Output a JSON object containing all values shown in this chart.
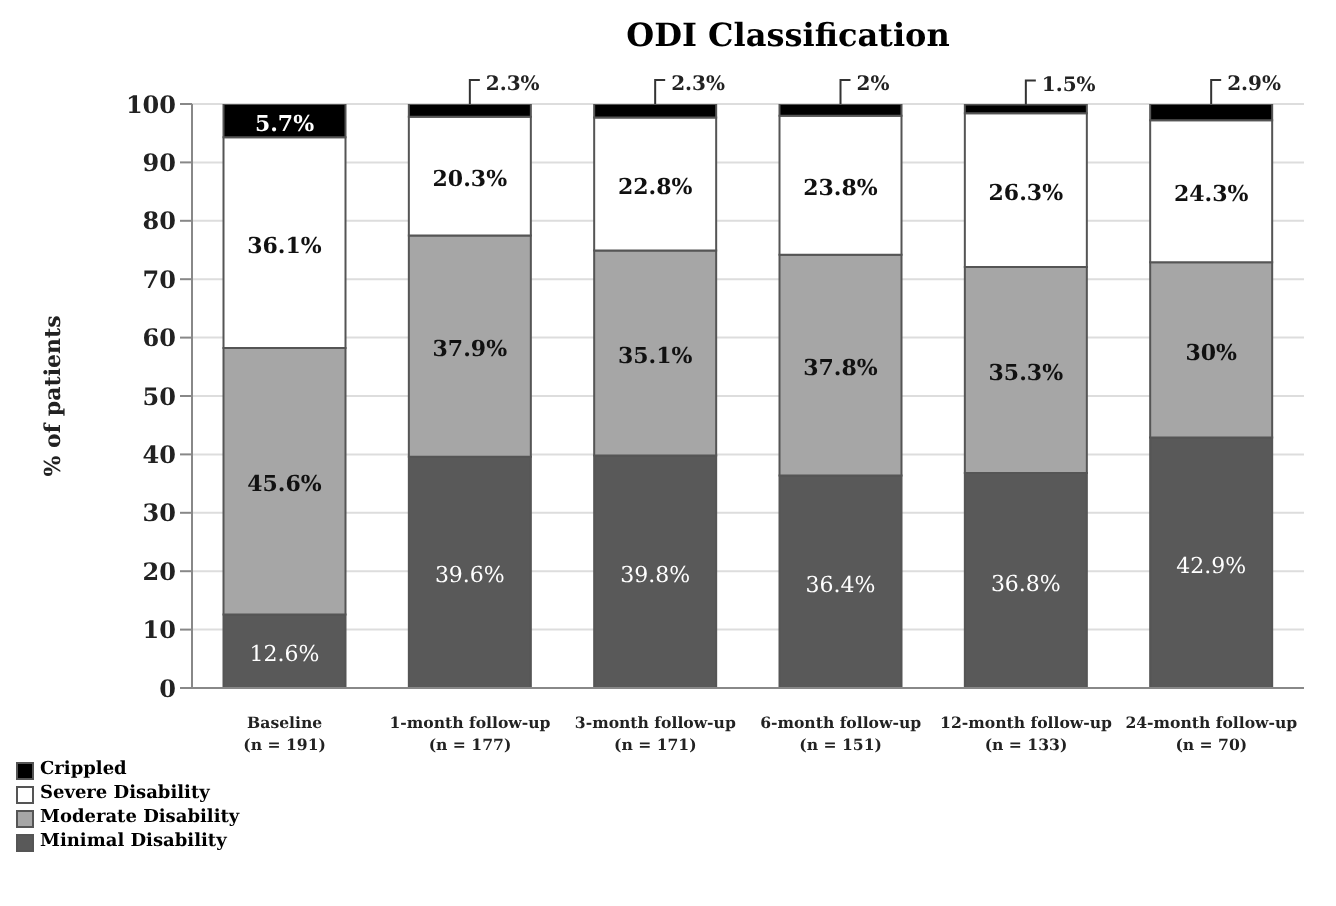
{
  "chart_data": {
    "type": "bar",
    "title": "ODI Classification",
    "ylabel": "% of patients",
    "stacked": true,
    "grid": "y",
    "legend": "bottom left",
    "categories": [
      "Baseline\n(n = 191)",
      "1-month follow-up\n(n = 177)",
      "3-month follow-up\n(n = 171)",
      "6-month follow-up\n(n = 151)",
      "12-month follow-up\n(n = 133)",
      "24-month follow-up\n(n = 70)"
    ],
    "ylim": [
      0,
      100
    ],
    "yticks": [
      0,
      10,
      20,
      30,
      40,
      50,
      60,
      70,
      80,
      90,
      100
    ],
    "series": [
      {
        "name": "Minimal Disability",
        "color": "#595959",
        "values": [
          12.6,
          39.6,
          39.8,
          36.4,
          36.8,
          42.9
        ],
        "value_labels": [
          "12.6%",
          "39.6%",
          "39.8%",
          "36.4%",
          "36.8%",
          "42.9%"
        ]
      },
      {
        "name": "Moderate Disability",
        "color": "#a6a6a6",
        "values": [
          45.6,
          37.9,
          35.1,
          37.8,
          35.3,
          30
        ],
        "value_labels": [
          "45.6%",
          "37.9%",
          "35.1%",
          "37.8%",
          "35.3%",
          "30%"
        ]
      },
      {
        "name": "Severe Disability",
        "color": "#ffffff",
        "values": [
          36.1,
          20.3,
          22.8,
          23.8,
          26.3,
          24.3
        ],
        "value_labels": [
          "36.1%",
          "20.3%",
          "22.8%",
          "23.8%",
          "26.3%",
          "24.3%"
        ]
      },
      {
        "name": "Crippled",
        "color": "#000000",
        "values": [
          5.7,
          2.3,
          2.3,
          2,
          1.5,
          2.9
        ],
        "value_labels": [
          "5.7%",
          "2.3%",
          "2.3%",
          "2%",
          "1.5%",
          "2.9%"
        ]
      }
    ]
  }
}
